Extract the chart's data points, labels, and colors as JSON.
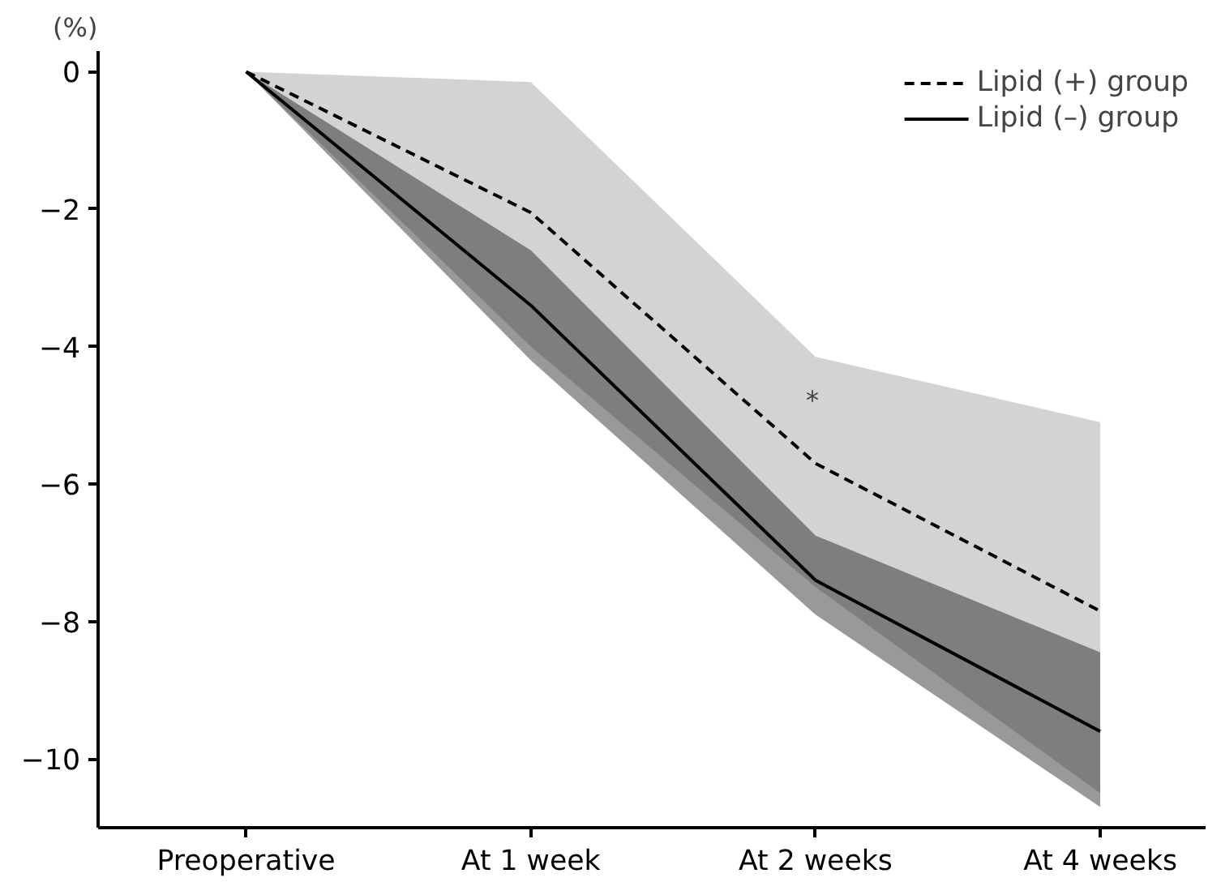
{
  "chart_data": {
    "type": "line",
    "ylabel": "(%)",
    "categories": [
      "Preoperative",
      "At 1 week",
      "At 2 weeks",
      "At 4 weeks"
    ],
    "series": [
      {
        "name": "Lipid (+) group",
        "color": "#000000",
        "line_style": "dashed",
        "values": [
          0,
          -2.05,
          -5.7,
          -7.85
        ],
        "lower": [
          0,
          -4.0,
          -7.5,
          -10.5
        ],
        "upper": [
          0,
          -0.15,
          -4.15,
          -5.1
        ]
      },
      {
        "name": "Lipid (–) group",
        "color": "#000000",
        "line_style": "solid",
        "values": [
          0,
          -3.4,
          -7.4,
          -9.6
        ],
        "lower": [
          0,
          -4.2,
          -7.9,
          -10.7
        ],
        "upper": [
          0,
          -2.6,
          -6.75,
          -8.45
        ]
      }
    ],
    "ylim": [
      -11,
      0.3
    ],
    "yticks": [
      {
        "value": 0,
        "label": "0"
      },
      {
        "value": -2,
        "label": "−2"
      },
      {
        "value": -4,
        "label": "−4"
      },
      {
        "value": -6,
        "label": "−6"
      },
      {
        "value": -8,
        "label": "−8"
      },
      {
        "value": -10,
        "label": "−10"
      }
    ],
    "annotations": [
      "*"
    ],
    "grid": false,
    "legend": "top right",
    "marker": "none"
  }
}
